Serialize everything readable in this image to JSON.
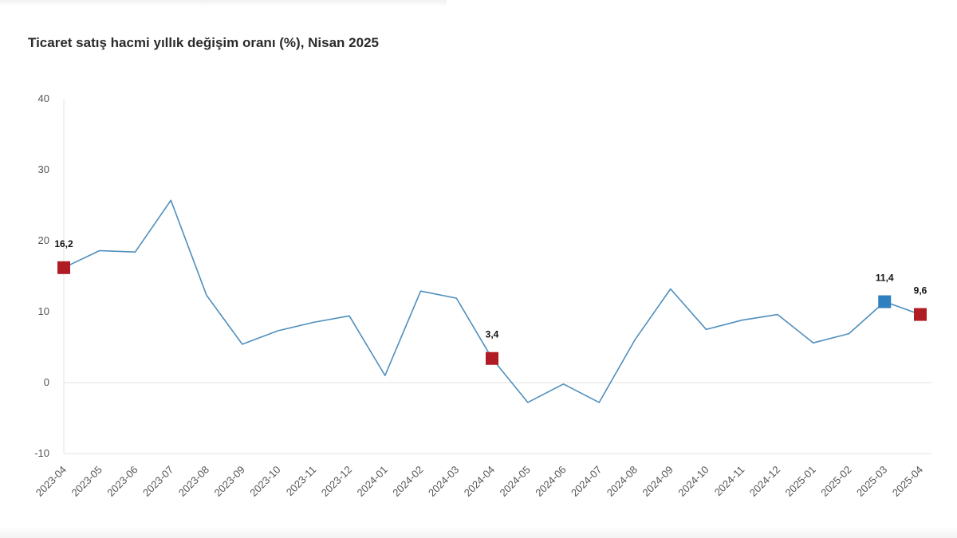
{
  "chart_data": {
    "type": "line",
    "title": "Ticaret satış hacmi yıllık değişim oranı (%), Nisan 2025",
    "xlabel": "",
    "ylabel": "",
    "ylim": [
      -10,
      40
    ],
    "yticks": [
      "40",
      "30",
      "20",
      "10",
      "0",
      "-10"
    ],
    "ytick_values": [
      40,
      30,
      20,
      10,
      0,
      -10
    ],
    "categories": [
      "2023-04",
      "2023-05",
      "2023-06",
      "2023-07",
      "2023-08",
      "2023-09",
      "2023-10",
      "2023-11",
      "2023-12",
      "2024-01",
      "2024-02",
      "2024-03",
      "2024-04",
      "2024-05",
      "2024-06",
      "2024-07",
      "2024-08",
      "2024-09",
      "2024-10",
      "2024-11",
      "2024-12",
      "2025-01",
      "2025-02",
      "2025-03",
      "2025-04"
    ],
    "series": [
      {
        "name": "Yıllık değişim oranı",
        "color": "#4f8fbd",
        "values": [
          16.2,
          18.6,
          18.4,
          25.7,
          12.3,
          5.4,
          7.3,
          8.5,
          9.4,
          1.0,
          12.9,
          11.9,
          3.4,
          -2.8,
          -0.2,
          -2.8,
          6.0,
          13.2,
          7.5,
          8.8,
          9.6,
          5.6,
          6.9,
          11.4,
          9.6
        ]
      }
    ],
    "highlights": [
      {
        "category": "2023-04",
        "label": "16,2",
        "color": "#b01c24"
      },
      {
        "category": "2024-04",
        "label": "3,4",
        "color": "#b01c24"
      },
      {
        "category": "2025-03",
        "label": "11,4",
        "color": "#2e7fbf"
      },
      {
        "category": "2025-04",
        "label": "9,6",
        "color": "#b01c24"
      }
    ],
    "grid": "y-zero-line",
    "axis_color": "#e3e3e3"
  }
}
